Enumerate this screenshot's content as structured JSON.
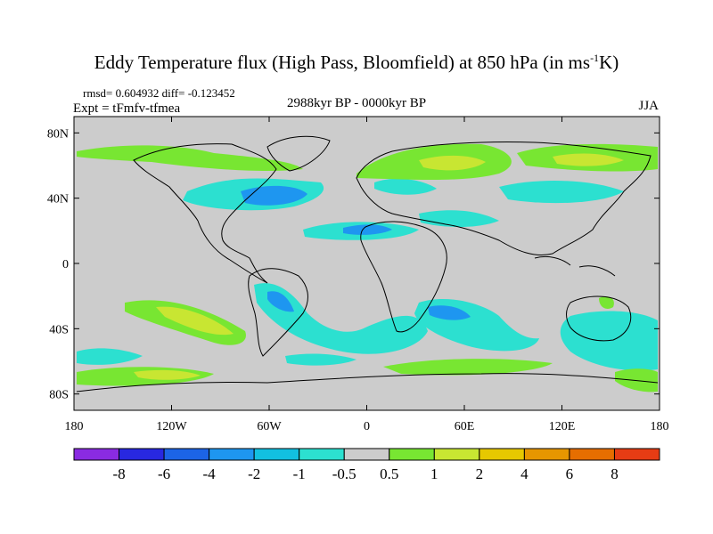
{
  "title": {
    "main": "Eddy Temperature flux (High Pass, Bloomfield) at 850 hPa (in ms",
    "sup": "-1",
    "tail": "K)"
  },
  "stats_line": "rmsd= 0.604932 diff= -0.123452",
  "expt_line": "Expt = tFmfv-tfmea",
  "period": "2988kyr BP - 0000kyr BP",
  "season": "JJA",
  "axes": {
    "lat_ticks": [
      "80N",
      "40N",
      "0",
      "40S",
      "80S"
    ],
    "lat_values": [
      80,
      40,
      0,
      -40,
      -80
    ],
    "lon_ticks": [
      "180",
      "120W",
      "60W",
      "0",
      "60E",
      "120E",
      "180"
    ],
    "lon_values": [
      -180,
      -120,
      -60,
      0,
      60,
      120,
      180
    ]
  },
  "colorbar": {
    "labels": [
      "-8",
      "-6",
      "-4",
      "-2",
      "-1",
      "-0.5",
      "0.5",
      "1",
      "2",
      "4",
      "6",
      "8"
    ],
    "colors": [
      "#8a2be2",
      "#2828e0",
      "#1c64e6",
      "#1e96f0",
      "#12c0e0",
      "#2ce0d0",
      "#cccccc",
      "#78e632",
      "#c8e632",
      "#e6c800",
      "#e69600",
      "#e66e00",
      "#e63c14"
    ]
  },
  "colors": {
    "missing": "#cccccc",
    "cyan_weak": "#2ce0d0",
    "cyan_mid": "#12c0e0",
    "blue": "#1e96f0",
    "green": "#78e632",
    "yellow_green": "#c8e632"
  }
}
